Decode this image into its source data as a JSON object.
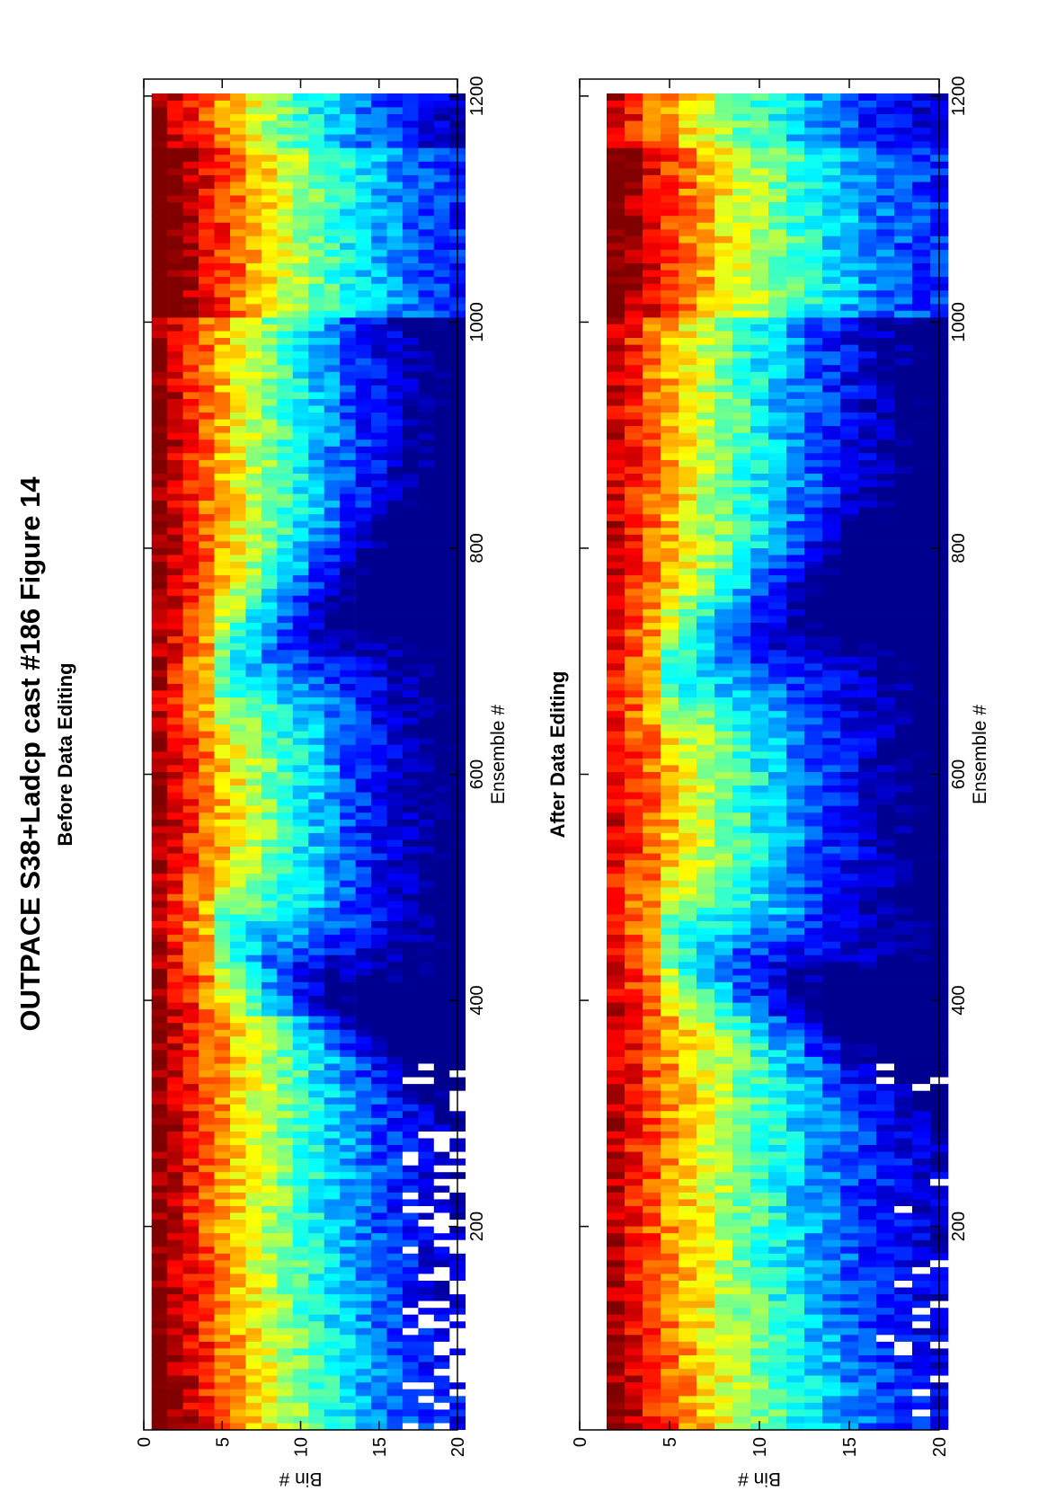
{
  "figure": {
    "title": "OUTPACE S38+Ladcp cast #186  Figure 14"
  },
  "colormap": [
    "#00008f",
    "#0000ff",
    "#0080ff",
    "#00ffff",
    "#80ff80",
    "#ffff00",
    "#ff8000",
    "#ff0000",
    "#800000"
  ],
  "chart_data": [
    {
      "type": "heatmap",
      "title": "Before Data Editing",
      "xlabel": "Ensemble #",
      "ylabel": "Bin #",
      "xlim": [
        20,
        1215
      ],
      "ylim": [
        20,
        0
      ],
      "xticks": [
        200,
        400,
        600,
        800,
        1000,
        1200
      ],
      "yticks": [
        0,
        5,
        10,
        15,
        20
      ],
      "bins": [
        1,
        20
      ],
      "colormap": "jet",
      "grid": false,
      "masked_gaps": "scattered white gaps in bins 17-20, ensembles 20-340",
      "intensity_profile_description": "high intensity near bins 1-4 decaying with depth; downcast and upcast diagonal low-intensity bands near ensembles 380-520 and 650-800"
    },
    {
      "type": "heatmap",
      "title": "After Data Editing",
      "xlabel": "Ensemble #",
      "ylabel": "Bin #",
      "xlim": [
        20,
        1215
      ],
      "ylim": [
        20,
        0
      ],
      "xticks": [
        200,
        400,
        600,
        800,
        1000,
        1200
      ],
      "yticks": [
        0,
        5,
        10,
        15,
        20
      ],
      "bins": [
        2,
        20
      ],
      "colormap": "jet",
      "grid": false,
      "masked_gaps": "bin 1 removed; sparse white gaps in bins 17-20",
      "intensity_profile_description": "same pattern as before editing with first bin blanked"
    }
  ]
}
